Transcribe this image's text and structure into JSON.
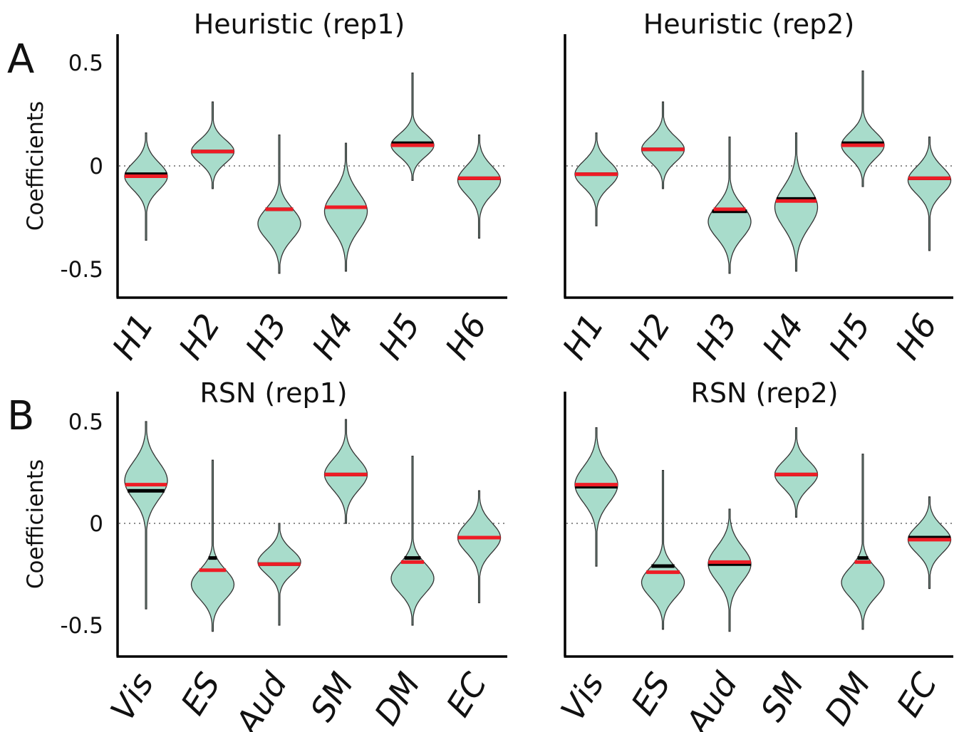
{
  "panel_labels": [
    "A",
    "B"
  ],
  "chart_data": [
    {
      "type": "violin",
      "panel": "A",
      "title": "Heuristic (rep1)",
      "ylabel": "Coefficients",
      "ylim": [
        -0.55,
        0.6
      ],
      "yticks": [
        0.5,
        0,
        -0.5
      ],
      "ytick_labels": [
        "0.5",
        "0",
        "-0.5"
      ],
      "zero_line": true,
      "categories": [
        "H1",
        "H2",
        "H3",
        "H4",
        "H5",
        "H6"
      ],
      "violins": [
        {
          "min": -0.36,
          "max": 0.16,
          "mode": -0.05,
          "mean": -0.04,
          "median": -0.05
        },
        {
          "min": -0.11,
          "max": 0.31,
          "mode": 0.07,
          "mean": 0.07,
          "median": 0.07
        },
        {
          "min": -0.52,
          "max": 0.15,
          "mode": -0.28,
          "mean": -0.21,
          "median": -0.21
        },
        {
          "min": -0.51,
          "max": 0.11,
          "mode": -0.22,
          "mean": -0.2,
          "median": -0.2
        },
        {
          "min": -0.07,
          "max": 0.45,
          "mode": 0.1,
          "mean": 0.11,
          "median": 0.1
        },
        {
          "min": -0.35,
          "max": 0.15,
          "mode": -0.07,
          "mean": -0.06,
          "median": -0.06
        }
      ]
    },
    {
      "type": "violin",
      "panel": "A",
      "title": "Heuristic (rep2)",
      "ylabel": "",
      "ylim": [
        -0.55,
        0.6
      ],
      "yticks": [
        0.5,
        0,
        -0.5
      ],
      "ytick_labels": [
        "",
        "",
        ""
      ],
      "zero_line": true,
      "categories": [
        "H1",
        "H2",
        "H3",
        "H4",
        "H5",
        "H6"
      ],
      "violins": [
        {
          "min": -0.29,
          "max": 0.16,
          "mode": -0.04,
          "mean": -0.04,
          "median": -0.04
        },
        {
          "min": -0.11,
          "max": 0.31,
          "mode": 0.08,
          "mean": 0.08,
          "median": 0.08
        },
        {
          "min": -0.52,
          "max": 0.14,
          "mode": -0.27,
          "mean": -0.22,
          "median": -0.21
        },
        {
          "min": -0.51,
          "max": 0.16,
          "mode": -0.2,
          "mean": -0.16,
          "median": -0.17
        },
        {
          "min": -0.1,
          "max": 0.46,
          "mode": 0.1,
          "mean": 0.11,
          "median": 0.1
        },
        {
          "min": -0.41,
          "max": 0.14,
          "mode": -0.07,
          "mean": -0.06,
          "median": -0.06
        }
      ]
    },
    {
      "type": "violin",
      "panel": "B",
      "title": "RSN (rep1)",
      "ylabel": "Coefficients",
      "ylim": [
        -0.6,
        0.65
      ],
      "yticks": [
        0.5,
        0,
        -0.5
      ],
      "ytick_labels": [
        "0.5",
        "0",
        "-0.5"
      ],
      "zero_line": true,
      "categories": [
        "Vis",
        "ES",
        "Aud",
        "SM",
        "DM",
        "EC"
      ],
      "violins": [
        {
          "min": -0.42,
          "max": 0.5,
          "mode": 0.21,
          "mean": 0.16,
          "median": 0.19
        },
        {
          "min": -0.53,
          "max": 0.31,
          "mode": -0.3,
          "mean": -0.17,
          "median": -0.23
        },
        {
          "min": -0.5,
          "max": 0.0,
          "mode": -0.19,
          "mean": -0.2,
          "median": -0.2
        },
        {
          "min": 0.0,
          "max": 0.51,
          "mode": 0.24,
          "mean": 0.24,
          "median": 0.24
        },
        {
          "min": -0.5,
          "max": 0.33,
          "mode": -0.27,
          "mean": -0.17,
          "median": -0.19
        },
        {
          "min": -0.39,
          "max": 0.16,
          "mode": -0.07,
          "mean": -0.07,
          "median": -0.07
        }
      ]
    },
    {
      "type": "violin",
      "panel": "B",
      "title": "RSN (rep2)",
      "ylabel": "",
      "ylim": [
        -0.6,
        0.65
      ],
      "yticks": [
        0.5,
        0,
        -0.5
      ],
      "ytick_labels": [
        "",
        "",
        ""
      ],
      "zero_line": true,
      "categories": [
        "Vis",
        "ES",
        "Aud",
        "SM",
        "DM",
        "EC"
      ],
      "violins": [
        {
          "min": -0.21,
          "max": 0.47,
          "mode": 0.19,
          "mean": 0.18,
          "median": 0.19
        },
        {
          "min": -0.52,
          "max": 0.26,
          "mode": -0.29,
          "mean": -0.21,
          "median": -0.24
        },
        {
          "min": -0.53,
          "max": 0.07,
          "mode": -0.2,
          "mean": -0.2,
          "median": -0.19
        },
        {
          "min": 0.03,
          "max": 0.47,
          "mode": 0.24,
          "mean": 0.24,
          "median": 0.24
        },
        {
          "min": -0.52,
          "max": 0.34,
          "mode": -0.29,
          "mean": -0.17,
          "median": -0.19
        },
        {
          "min": -0.32,
          "max": 0.13,
          "mode": -0.08,
          "mean": -0.07,
          "median": -0.08
        }
      ]
    }
  ]
}
